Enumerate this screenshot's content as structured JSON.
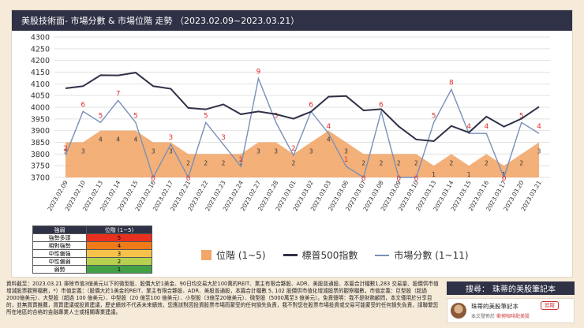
{
  "header": {
    "title": "美股技術面- 市場分數 & 市場位階 走勢 （2023.02.09~2023.03.21）"
  },
  "colors": {
    "area": "#f2a76a",
    "sp500": "#2f3146",
    "score": "#7a8fb8",
    "label_red": "#e03030"
  },
  "chart_data": {
    "type": "line",
    "title": "美股技術面- 市場分數 & 市場位階 走勢 （2023.02.09~2023.03.21）",
    "categories": [
      "2023.02.09",
      "2023.02.10",
      "2023.02.13",
      "2023.02.14",
      "2023.02.15",
      "2023.02.16",
      "2023.02.17",
      "2023.02.21",
      "2023.02.22",
      "2023.02.23",
      "2023.02.24",
      "2023.02.27",
      "2023.02.28",
      "2023.03.01",
      "2023.03.02",
      "2023.03.03",
      "2023.03.06",
      "2023.03.07",
      "2023.03.08",
      "2023.03.09",
      "2023.03.10",
      "2023.03.13",
      "2023.03.14",
      "2023.03.15",
      "2023.03.16",
      "2023.03.17",
      "2023.03.20",
      "2023.03.21"
    ],
    "ylim": [
      3700,
      4300
    ],
    "yticks": [
      3700,
      3750,
      3800,
      3850,
      3900,
      3950,
      4000,
      4050,
      4100,
      4150,
      4200,
      4250,
      4300
    ],
    "series": [
      {
        "name": "標普500指數",
        "values": [
          4081,
          4090,
          4137,
          4136,
          4148,
          4090,
          4079,
          3997,
          3991,
          4012,
          3970,
          3982,
          3970,
          3951,
          3981,
          4045,
          4048,
          3986,
          3992,
          3918,
          3862,
          3855,
          3920,
          3892,
          3960,
          3917,
          3951,
          4002
        ]
      },
      {
        "name": "市場分數 (1~11)",
        "values": [
          2,
          6,
          5,
          7,
          5,
          0,
          3,
          0,
          5,
          3,
          1,
          9,
          5,
          2,
          6,
          4,
          1,
          0,
          6,
          0,
          0,
          5,
          8,
          4,
          4,
          0,
          5,
          4
        ]
      },
      {
        "name": "位階 (1~5)",
        "values": [
          3,
          3,
          4,
          4,
          4,
          3,
          3,
          2,
          2,
          2,
          2,
          3,
          3,
          2,
          3,
          4,
          3,
          2,
          2,
          2,
          2,
          1,
          2,
          1,
          2,
          1,
          2,
          3
        ]
      }
    ]
  },
  "level_table": {
    "header": [
      "強弱",
      "位階 (1~5)"
    ],
    "rows": [
      {
        "label": "強勢多頭",
        "level": "5",
        "color": "#e83020"
      },
      {
        "label": "相對強勢",
        "level": "4",
        "color": "#f07a18"
      },
      {
        "label": "中性偏強",
        "level": "3",
        "color": "#f6c24a"
      },
      {
        "label": "中性偏弱",
        "level": "2",
        "color": "#b8d050"
      },
      {
        "label": "弱勢",
        "level": "1",
        "color": "#43a047"
      }
    ]
  },
  "legend": {
    "area": "位階 (1~5)",
    "sp500": "標普500指數",
    "score": "市場分數 (1~11)"
  },
  "footnote": "資料截至：2023.03.21 排除市值3億美元以下的微型股、股價大於1美金、90日均交易大於100萬的REIT、業主有限合夥股、ADR、美股普通股、本篇合計檔數1,283 交易量、股價供市值增減股票觀察檔數，*）市值定義：（股價大於1美金的REIT、業主有限合夥股、ADR、美股普通股，本篇合計檔數 5, 102 股價供市值化增減股票的觀察檔數，市值定義：巨型股（超過2000億美元）、大型股（超過 100 億美元）、中型股（20 億至100 億美元）、小型股（3億至20億美元）、微型股（5000萬至3 億美元）。免責聲明：我不是財務顧問，本文僅用於分享目的，並無買賣推薦，買賣建議或投資建議，歷史績效不代表未來績效，您應該對因投資股票市場而蒙受的任何損失負責，我不對您在股票市場投資或交易可能蒙受的任何損失負責，請聯繫您所在地區的合格的金融專業人士或相關專業建議。",
  "search": {
    "prefix": "搜尋：",
    "name": "珠蒂的美股筆記本"
  },
  "channel": {
    "name": "珠蒂的美股筆記本",
    "follow": "追蹤",
    "sub_prefix": "本文發佈於",
    "sub_link": "衝撈咖啡配美股"
  }
}
